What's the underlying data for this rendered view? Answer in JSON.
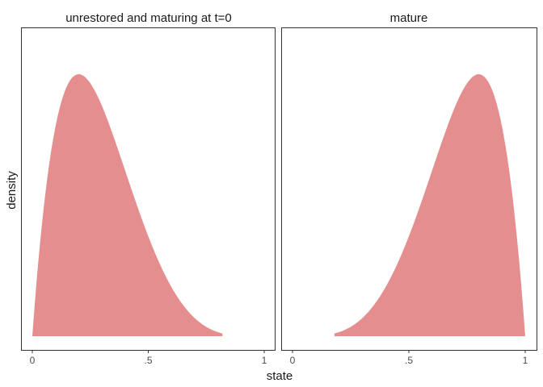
{
  "chart_data": {
    "type": "area",
    "xlabel": "state",
    "ylabel": "density",
    "xlim": [
      0,
      1
    ],
    "ylim": [
      0,
      2.7
    ],
    "grid": false,
    "x_ticks": [
      {
        "value": 0,
        "label": "0"
      },
      {
        "value": 0.5,
        "label": ".5"
      },
      {
        "value": 1,
        "label": "1"
      }
    ],
    "fill_color": "#e58e8f",
    "panels": [
      {
        "title": "unrestored and maturing at t=0",
        "distribution": "beta",
        "alpha": 2,
        "beta": 5,
        "x_range": [
          0,
          0.82
        ]
      },
      {
        "title": "mature",
        "distribution": "beta",
        "alpha": 5,
        "beta": 2,
        "x_range": [
          0.18,
          1
        ]
      }
    ]
  }
}
